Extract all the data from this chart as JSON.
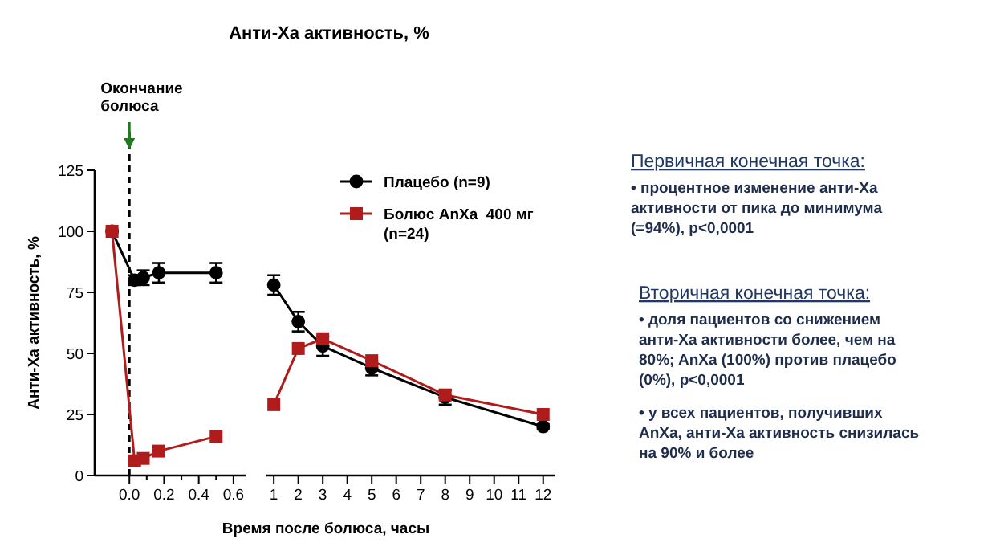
{
  "chart_data": [
    {
      "type": "line",
      "ylabel": "Анти-Ха активность, %",
      "xlim": [
        -0.2,
        0.67
      ],
      "xticks": [
        {
          "value": 0,
          "label": "0.0"
        },
        {
          "value": 0.1,
          "label": null
        },
        {
          "value": 0.2,
          "label": "0.2"
        },
        {
          "value": 0.3,
          "label": null
        },
        {
          "value": 0.4,
          "label": "0.4"
        },
        {
          "value": 0.5,
          "label": null
        },
        {
          "value": 0.6,
          "label": "0.6"
        }
      ],
      "ylim": [
        0,
        125
      ],
      "yticks": [
        0,
        25,
        50,
        75,
        100,
        125
      ],
      "grid": false,
      "line_style": "solid",
      "ref_lines": [
        {
          "axis": "x",
          "value": 0,
          "label": "Окончание болюса",
          "line_style": "dashed",
          "color": "#000000"
        }
      ],
      "series": [
        {
          "color": "#000000",
          "marker": "circle",
          "x": [
            -0.1,
            0.03,
            0.08,
            0.17,
            0.5
          ],
          "values": [
            100,
            80,
            81,
            83,
            83
          ],
          "errors": [
            null,
            2,
            3,
            4,
            4
          ]
        },
        {
          "color": "#b01c1c",
          "marker": "square",
          "x": [
            -0.1,
            0.03,
            0.08,
            0.17,
            0.5
          ],
          "values": [
            100,
            6,
            7,
            10,
            16
          ]
        }
      ]
    },
    {
      "type": "line",
      "title": "Анти-Ха активность, %",
      "xlabel": "Время после болюса, часы",
      "xlim": [
        0.7,
        12.5
      ],
      "xticks": [
        1,
        2,
        3,
        4,
        5,
        6,
        7,
        8,
        9,
        10,
        11,
        12
      ],
      "ylim": [
        0,
        125
      ],
      "tick_labels": "x",
      "grid": false,
      "legend": "top right",
      "line_style": "solid",
      "series": [
        {
          "name": "Плацебо (n=9)",
          "color": "#000000",
          "marker": "circle",
          "x": [
            1,
            2,
            3,
            5,
            8,
            12
          ],
          "values": [
            78,
            63,
            53,
            44,
            32,
            20
          ],
          "errors": [
            4,
            4,
            4,
            3,
            3,
            1
          ]
        },
        {
          "name": "Болюс AnXa  400 мг (n=24)",
          "color": "#b01c1c",
          "marker": "square",
          "x": [
            1,
            2,
            3,
            5,
            8,
            12
          ],
          "values": [
            29,
            52,
            56,
            47,
            33,
            25
          ]
        }
      ]
    },
    {
      "type": "other",
      "title": "Первичная конечная точка:",
      "annotations": [
        "• процентное изменение анти-Ха активности от пика до минимума (=94%), p<0,0001"
      ]
    },
    {
      "type": "other",
      "title": "Вторичная конечная точка:",
      "annotations": [
        "• доля пациентов со снижением анти-Ха активности более, чем на 80%; AnXa (100%) против плацебо (0%), p<0,0001",
        "• у всех пациентов, получивших AnXa, анти-Ха активность снизилась на 90% и более"
      ]
    }
  ]
}
